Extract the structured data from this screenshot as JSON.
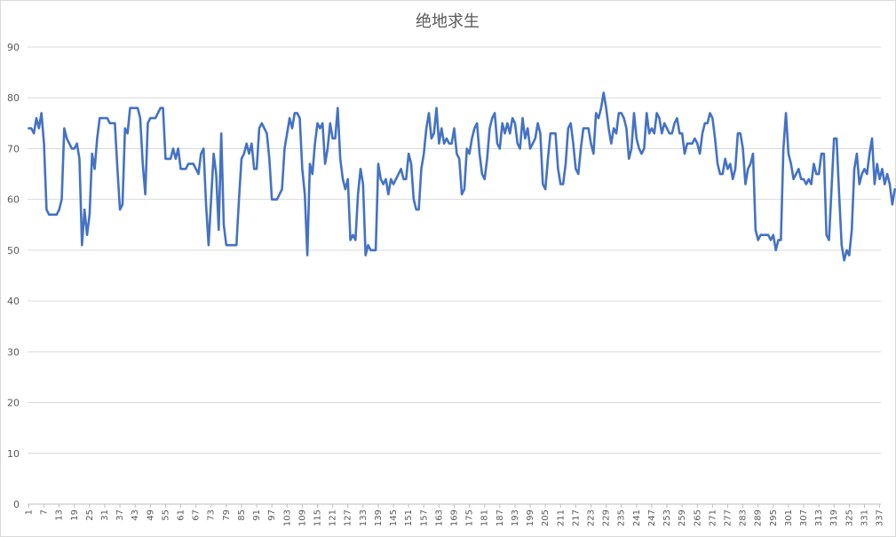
{
  "chart_data": {
    "type": "line",
    "title": "绝地求生",
    "xlabel": "",
    "ylabel": "",
    "ylim": [
      0,
      90
    ],
    "y_ticks": [
      0,
      10,
      20,
      30,
      40,
      50,
      60,
      70,
      80,
      90
    ],
    "xlim": [
      1,
      337
    ],
    "x_tick_labels": [
      1,
      7,
      13,
      19,
      25,
      31,
      37,
      43,
      49,
      55,
      61,
      67,
      73,
      79,
      85,
      91,
      97,
      103,
      109,
      115,
      121,
      127,
      133,
      139,
      145,
      151,
      157,
      163,
      169,
      175,
      181,
      187,
      193,
      199,
      205,
      211,
      217,
      223,
      229,
      235,
      241,
      247,
      253,
      259,
      265,
      271,
      277,
      283,
      289,
      295,
      301,
      307,
      313,
      319,
      325,
      331,
      337
    ],
    "grid": true,
    "legend": "none",
    "color": "#4472c4",
    "series": [
      {
        "values": [
          74,
          74,
          73,
          76,
          74,
          77,
          71,
          58,
          57,
          57,
          57,
          57,
          58,
          60,
          74,
          72,
          71,
          70,
          70,
          71,
          68,
          51,
          58,
          53,
          57,
          69,
          66,
          72,
          76,
          76,
          76,
          76,
          75,
          75,
          75,
          66,
          58,
          59,
          74,
          73,
          78,
          78,
          78,
          78,
          76,
          67,
          61,
          75,
          76,
          76,
          76,
          77,
          78,
          78,
          68,
          68,
          68,
          70,
          68,
          70,
          66,
          66,
          66,
          67,
          67,
          67,
          66,
          65,
          69,
          70,
          59,
          51,
          60,
          69,
          65,
          54,
          73,
          55,
          51,
          51,
          51,
          51,
          51,
          60,
          68,
          69,
          71,
          69,
          71,
          66,
          66,
          74,
          75,
          74,
          73,
          68,
          60,
          60,
          60,
          61,
          62,
          70,
          73,
          76,
          74,
          77,
          77,
          76,
          66,
          61,
          49,
          67,
          65,
          71,
          75,
          74,
          75,
          67,
          70,
          75,
          72,
          72,
          78,
          68,
          64,
          62,
          64,
          52,
          53,
          52,
          61,
          66,
          63,
          49,
          51,
          50,
          50,
          50,
          67,
          64,
          63,
          64,
          61,
          64,
          63,
          64,
          65,
          66,
          64,
          64,
          69,
          67,
          60,
          58,
          58,
          66,
          69,
          74,
          77,
          72,
          73,
          78,
          71,
          74,
          71,
          72,
          71,
          71,
          74,
          69,
          68,
          61,
          62,
          70,
          69,
          72,
          74,
          75,
          69,
          65,
          64,
          68,
          74,
          76,
          77,
          71,
          70,
          75,
          73,
          75,
          73,
          76,
          75,
          71,
          70,
          76,
          72,
          74,
          70,
          71,
          72,
          75,
          73,
          63,
          62,
          68,
          73,
          73,
          73,
          66,
          63,
          63,
          67,
          74,
          75,
          71,
          66,
          65,
          70,
          74,
          74,
          74,
          71,
          69,
          77,
          76,
          78,
          81,
          78,
          74,
          71,
          74,
          73,
          77,
          77,
          76,
          74,
          68,
          70,
          77,
          72,
          70,
          69,
          70,
          77,
          73,
          74,
          73,
          77,
          76,
          73,
          75,
          74,
          73,
          73,
          75,
          76,
          73,
          73,
          69,
          71,
          71,
          71,
          72,
          71,
          69,
          73,
          75,
          75,
          77,
          76,
          72,
          67,
          65,
          65,
          68,
          66,
          67,
          64,
          66,
          73,
          73,
          70,
          63,
          66,
          67,
          69,
          54,
          52,
          53,
          53,
          53,
          53,
          52,
          53,
          50,
          52,
          52,
          70,
          77,
          69,
          67,
          64,
          65,
          66,
          64,
          64,
          63,
          64,
          63,
          67,
          65,
          65,
          69,
          69,
          53,
          52,
          62,
          72,
          72,
          61,
          51,
          48,
          50,
          49,
          54,
          66,
          69,
          63,
          65,
          66,
          65,
          69,
          72,
          63,
          67,
          64,
          66,
          63,
          65,
          63,
          59,
          62
        ]
      }
    ]
  }
}
